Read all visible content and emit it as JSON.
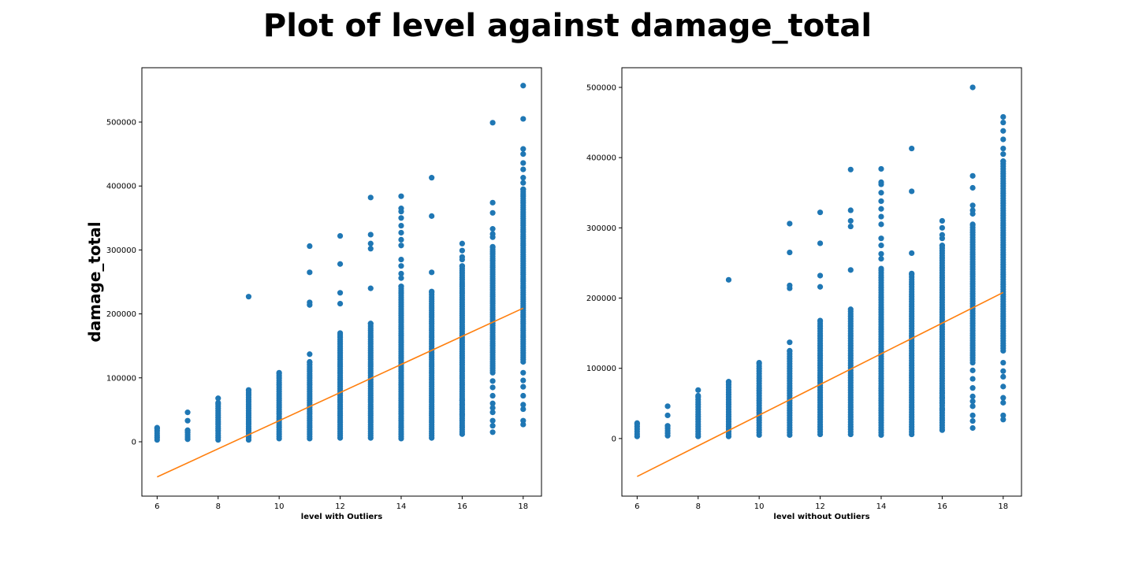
{
  "figure": {
    "title": "Plot of level against damage_total"
  },
  "colors": {
    "points": "#1f77b4",
    "fit_line": "#ff7f0e",
    "axes": "#000000",
    "background": "#ffffff"
  },
  "chart_data": [
    {
      "type": "scatter",
      "panel": "left",
      "xlabel": "level with Outliers",
      "ylabel": "damage_total",
      "xlim": [
        5.5,
        18.6
      ],
      "ylim": [
        -85000,
        585000
      ],
      "xticks": [
        6,
        8,
        10,
        12,
        14,
        16,
        18
      ],
      "yticks": [
        0,
        100000,
        200000,
        300000,
        400000,
        500000
      ],
      "grid": false,
      "columns": [
        {
          "x": 6,
          "min": 3000,
          "max": 22000,
          "outliers": []
        },
        {
          "x": 7,
          "min": 4000,
          "max": 18000,
          "outliers": [
            33000,
            46000
          ]
        },
        {
          "x": 8,
          "min": 3000,
          "max": 61000,
          "outliers": [
            68000
          ]
        },
        {
          "x": 9,
          "min": 3000,
          "max": 81000,
          "outliers": [
            227000
          ]
        },
        {
          "x": 10,
          "min": 5000,
          "max": 108000,
          "outliers": []
        },
        {
          "x": 11,
          "min": 5000,
          "max": 125000,
          "outliers": [
            137000,
            214000,
            218000,
            265000,
            306000
          ]
        },
        {
          "x": 12,
          "min": 6000,
          "max": 170000,
          "outliers": [
            216000,
            233000,
            278000,
            322000
          ]
        },
        {
          "x": 13,
          "min": 6000,
          "max": 185000,
          "outliers": [
            240000,
            302000,
            310000,
            324000,
            382000
          ]
        },
        {
          "x": 14,
          "min": 5000,
          "max": 243000,
          "outliers": [
            256000,
            263000,
            275000,
            285000,
            307000,
            316000,
            327000,
            338000,
            350000,
            360000,
            365000,
            384000
          ]
        },
        {
          "x": 15,
          "min": 6000,
          "max": 235000,
          "outliers": [
            265000,
            353000,
            413000
          ]
        },
        {
          "x": 16,
          "min": 12000,
          "max": 275000,
          "outliers": [
            42000,
            51000,
            58000,
            65000,
            285000,
            289000,
            299000,
            310000
          ]
        },
        {
          "x": 17,
          "min": 108000,
          "max": 305000,
          "outliers": [
            15000,
            25000,
            33000,
            46000,
            53000,
            60000,
            72000,
            85000,
            95000,
            320000,
            325000,
            333000,
            358000,
            374000,
            499000
          ]
        },
        {
          "x": 18,
          "min": 125000,
          "max": 395000,
          "outliers": [
            27000,
            33000,
            51000,
            58000,
            72000,
            86000,
            96000,
            108000,
            405000,
            413000,
            426000,
            436000,
            450000,
            458000,
            505000,
            557000
          ]
        }
      ],
      "fit_line": {
        "x": [
          6,
          18
        ],
        "y": [
          -55000,
          209000
        ]
      }
    },
    {
      "type": "scatter",
      "panel": "right",
      "xlabel": "level without Outliers",
      "ylabel": "",
      "xlim": [
        5.5,
        18.6
      ],
      "ylim": [
        -82000,
        528000
      ],
      "xticks": [
        6,
        8,
        10,
        12,
        14,
        16,
        18
      ],
      "yticks": [
        0,
        100000,
        200000,
        300000,
        400000,
        500000
      ],
      "grid": false,
      "columns": [
        {
          "x": 6,
          "min": 3000,
          "max": 22000,
          "outliers": []
        },
        {
          "x": 7,
          "min": 4000,
          "max": 18000,
          "outliers": [
            33000,
            46000
          ]
        },
        {
          "x": 8,
          "min": 3000,
          "max": 61000,
          "outliers": [
            69000
          ]
        },
        {
          "x": 9,
          "min": 3000,
          "max": 81000,
          "outliers": [
            226000
          ]
        },
        {
          "x": 10,
          "min": 5000,
          "max": 108000,
          "outliers": []
        },
        {
          "x": 11,
          "min": 5000,
          "max": 125000,
          "outliers": [
            137000,
            214000,
            218000,
            265000,
            306000
          ]
        },
        {
          "x": 12,
          "min": 6000,
          "max": 168000,
          "outliers": [
            216000,
            232000,
            278000,
            322000
          ]
        },
        {
          "x": 13,
          "min": 6000,
          "max": 184000,
          "outliers": [
            240000,
            302000,
            310000,
            325000,
            383000
          ]
        },
        {
          "x": 14,
          "min": 5000,
          "max": 242000,
          "outliers": [
            256000,
            263000,
            275000,
            285000,
            305000,
            316000,
            327000,
            338000,
            350000,
            362000,
            365000,
            384000
          ]
        },
        {
          "x": 15,
          "min": 6000,
          "max": 235000,
          "outliers": [
            264000,
            352000,
            413000
          ]
        },
        {
          "x": 16,
          "min": 12000,
          "max": 275000,
          "outliers": [
            42000,
            51000,
            58000,
            65000,
            285000,
            290000,
            300000,
            310000
          ]
        },
        {
          "x": 17,
          "min": 108000,
          "max": 305000,
          "outliers": [
            15000,
            25000,
            33000,
            46000,
            53000,
            60000,
            72000,
            85000,
            97000,
            320000,
            325000,
            332000,
            357000,
            374000,
            500000
          ]
        },
        {
          "x": 18,
          "min": 125000,
          "max": 395000,
          "outliers": [
            27000,
            33000,
            51000,
            58000,
            74000,
            88000,
            96000,
            108000,
            405000,
            413000,
            426000,
            438000,
            450000,
            458000
          ]
        }
      ],
      "fit_line": {
        "x": [
          6,
          18
        ],
        "y": [
          -54000,
          208000
        ]
      }
    }
  ]
}
